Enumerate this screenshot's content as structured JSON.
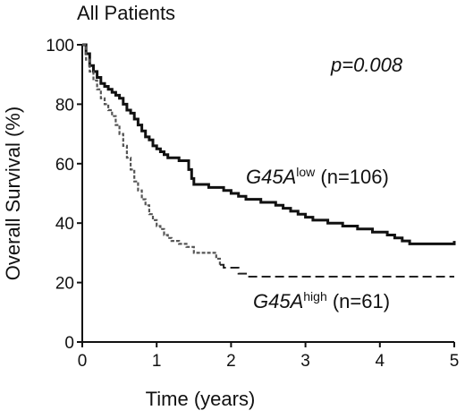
{
  "chart_data": {
    "type": "line",
    "title": "All Patients",
    "xlabel": "Time (years)",
    "ylabel": "Overall Survival (%)",
    "xlim": [
      0,
      5
    ],
    "ylim": [
      0,
      100
    ],
    "xticks": [
      "0",
      "1",
      "2",
      "3",
      "4",
      "5"
    ],
    "yticks": [
      "0",
      "20",
      "40",
      "60",
      "80",
      "100"
    ],
    "grid": false,
    "annotation": "p=0.008",
    "series": [
      {
        "gene": "G45A",
        "superscript": "low",
        "count_label": " (n=106)",
        "color": "#111111",
        "line_style": "solid",
        "points": [
          [
            0.0,
            100
          ],
          [
            0.05,
            97
          ],
          [
            0.1,
            93
          ],
          [
            0.15,
            91
          ],
          [
            0.2,
            89
          ],
          [
            0.25,
            87
          ],
          [
            0.3,
            86
          ],
          [
            0.35,
            85
          ],
          [
            0.4,
            84
          ],
          [
            0.45,
            83
          ],
          [
            0.5,
            82
          ],
          [
            0.55,
            80
          ],
          [
            0.6,
            78
          ],
          [
            0.65,
            77
          ],
          [
            0.7,
            75
          ],
          [
            0.75,
            73
          ],
          [
            0.8,
            71
          ],
          [
            0.85,
            69
          ],
          [
            0.9,
            68
          ],
          [
            0.95,
            66
          ],
          [
            1.0,
            65
          ],
          [
            1.05,
            64
          ],
          [
            1.1,
            63
          ],
          [
            1.15,
            62
          ],
          [
            1.2,
            62
          ],
          [
            1.3,
            61
          ],
          [
            1.4,
            61
          ],
          [
            1.43,
            58
          ],
          [
            1.47,
            55
          ],
          [
            1.5,
            53
          ],
          [
            1.6,
            53
          ],
          [
            1.7,
            52
          ],
          [
            1.8,
            52
          ],
          [
            1.9,
            51
          ],
          [
            2.0,
            50
          ],
          [
            2.1,
            49
          ],
          [
            2.2,
            48
          ],
          [
            2.3,
            48
          ],
          [
            2.4,
            47
          ],
          [
            2.5,
            47
          ],
          [
            2.6,
            46
          ],
          [
            2.7,
            45
          ],
          [
            2.8,
            44
          ],
          [
            2.9,
            43
          ],
          [
            3.0,
            42
          ],
          [
            3.1,
            41
          ],
          [
            3.2,
            41
          ],
          [
            3.3,
            40
          ],
          [
            3.4,
            40
          ],
          [
            3.5,
            39
          ],
          [
            3.6,
            39
          ],
          [
            3.7,
            38
          ],
          [
            3.8,
            38
          ],
          [
            3.9,
            37
          ],
          [
            4.0,
            37
          ],
          [
            4.1,
            36
          ],
          [
            4.2,
            35
          ],
          [
            4.3,
            34
          ],
          [
            4.4,
            33
          ],
          [
            4.6,
            33
          ],
          [
            4.8,
            33
          ],
          [
            5.0,
            34
          ]
        ]
      },
      {
        "gene": "G45A",
        "superscript": "high",
        "count_label": " (n=61)",
        "color": "#555555",
        "line_style": "dashed-after-last-event",
        "points": [
          [
            0.0,
            100
          ],
          [
            0.05,
            95
          ],
          [
            0.1,
            91
          ],
          [
            0.15,
            88
          ],
          [
            0.2,
            85
          ],
          [
            0.25,
            82
          ],
          [
            0.3,
            80
          ],
          [
            0.35,
            78
          ],
          [
            0.4,
            76
          ],
          [
            0.45,
            73
          ],
          [
            0.5,
            70
          ],
          [
            0.55,
            66
          ],
          [
            0.6,
            62
          ],
          [
            0.65,
            58
          ],
          [
            0.7,
            54
          ],
          [
            0.75,
            51
          ],
          [
            0.8,
            48
          ],
          [
            0.85,
            46
          ],
          [
            0.9,
            43
          ],
          [
            0.95,
            41
          ],
          [
            1.0,
            39
          ],
          [
            1.05,
            38
          ],
          [
            1.1,
            36
          ],
          [
            1.15,
            35
          ],
          [
            1.2,
            34
          ],
          [
            1.3,
            33
          ],
          [
            1.4,
            32
          ],
          [
            1.5,
            30
          ],
          [
            1.6,
            30
          ],
          [
            1.7,
            30
          ],
          [
            1.8,
            28
          ],
          [
            1.85,
            26
          ],
          [
            1.9,
            25
          ],
          [
            2.0,
            25
          ],
          [
            2.1,
            23
          ],
          [
            2.2,
            22
          ],
          [
            2.4,
            22
          ],
          [
            2.6,
            22
          ],
          [
            3.0,
            22
          ],
          [
            3.5,
            22
          ],
          [
            4.0,
            22
          ],
          [
            4.5,
            22
          ],
          [
            5.0,
            22
          ]
        ],
        "dashed_from_x": 1.85
      }
    ]
  }
}
